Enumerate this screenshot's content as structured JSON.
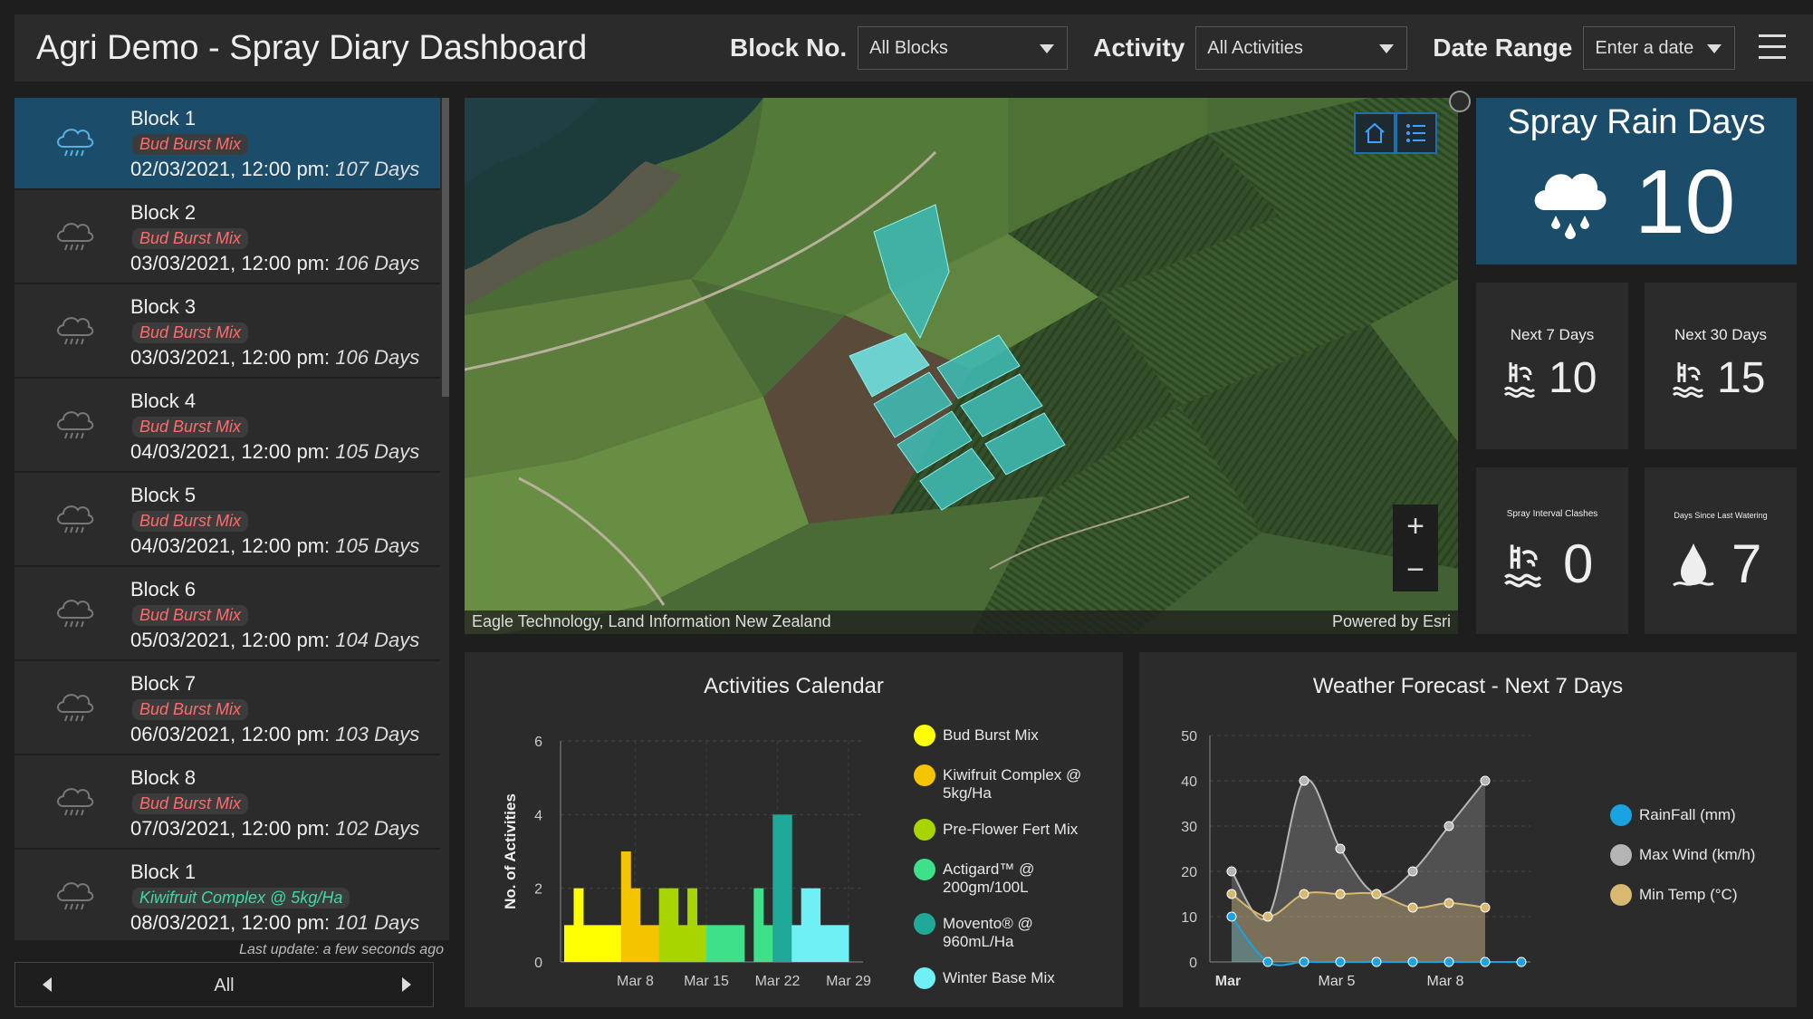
{
  "header": {
    "title": "Agri Demo - Spray Diary Dashboard",
    "block_label": "Block No.",
    "block_value": "All Blocks",
    "activity_label": "Activity",
    "activity_value": "All Activities",
    "date_label": "Date Range",
    "date_value": "Enter a date"
  },
  "list": {
    "items": [
      {
        "title": "Block 1",
        "tag": "Bud Burst Mix",
        "date": "02/03/2021, 12:00 pm:",
        "days": "107 Days"
      },
      {
        "title": "Block 2",
        "tag": "Bud Burst Mix",
        "date": "03/03/2021, 12:00 pm:",
        "days": "106 Days"
      },
      {
        "title": "Block 3",
        "tag": "Bud Burst Mix",
        "date": "03/03/2021, 12:00 pm:",
        "days": "106 Days"
      },
      {
        "title": "Block 4",
        "tag": "Bud Burst Mix",
        "date": "04/03/2021, 12:00 pm:",
        "days": "105 Days"
      },
      {
        "title": "Block 5",
        "tag": "Bud Burst Mix",
        "date": "04/03/2021, 12:00 pm:",
        "days": "105 Days"
      },
      {
        "title": "Block 6",
        "tag": "Bud Burst Mix",
        "date": "05/03/2021, 12:00 pm:",
        "days": "104 Days"
      },
      {
        "title": "Block 7",
        "tag": "Bud Burst Mix",
        "date": "06/03/2021, 12:00 pm:",
        "days": "103 Days"
      },
      {
        "title": "Block 8",
        "tag": "Bud Burst Mix",
        "date": "07/03/2021, 12:00 pm:",
        "days": "102 Days"
      },
      {
        "title": "Block 1",
        "tag": "Kiwifruit Complex @ 5kg/Ha",
        "date": "08/03/2021, 12:00 pm:",
        "days": "101 Days"
      }
    ],
    "last_update": "Last update: a few seconds ago",
    "pager_label": "All"
  },
  "map": {
    "attribution_left": "Eagle Technology, Land Information New Zealand",
    "attribution_right": "Powered by Esri",
    "zoom_in": "+",
    "zoom_out": "−"
  },
  "stats": {
    "spray_rain_days_title": "Spray Rain Days",
    "spray_rain_days_value": "10",
    "next7_title": "Next 7 Days",
    "next7_value": "10",
    "next30_title": "Next 30 Days",
    "next30_value": "15",
    "clashes_title": "Spray Interval Clashes",
    "clashes_value": "0",
    "watering_title": "Days Since Last Watering",
    "watering_value": "7"
  },
  "activities_chart": {
    "title": "Activities Calendar",
    "legend": [
      {
        "name": "Bud Burst Mix",
        "color": "#ffff00"
      },
      {
        "name": "Kiwifruit Complex @ 5kg/Ha",
        "color": "#f5c400"
      },
      {
        "name": "Pre-Flower Fert Mix",
        "color": "#a8d400"
      },
      {
        "name": "Actigard™ @ 200gm/100L",
        "color": "#3ee08a"
      },
      {
        "name": "Movento® @ 960mL/Ha",
        "color": "#20a898"
      },
      {
        "name": "Winter Base Mix",
        "color": "#6ff0f4"
      }
    ]
  },
  "weather_chart": {
    "title": "Weather Forecast - Next 7 Days",
    "legend": [
      {
        "name": "RainFall (mm)",
        "color": "#1aa3e0"
      },
      {
        "name": "Max Wind (km/h)",
        "color": "#b5b5b5"
      },
      {
        "name": "Min Temp (°C)",
        "color": "#d9b870"
      }
    ]
  },
  "chart_data": [
    {
      "type": "bar",
      "title": "Activities Calendar",
      "ylabel": "No. of Activities",
      "xlabel": "",
      "ylim": [
        0,
        6
      ],
      "yticks": [
        0,
        2,
        4,
        6
      ],
      "x_tick_labels": [
        "Mar 8",
        "Mar 15",
        "Mar 22",
        "Mar 29"
      ],
      "bars": [
        {
          "day": 1,
          "value": 1,
          "series": "Bud Burst Mix"
        },
        {
          "day": 2,
          "value": 2,
          "series": "Bud Burst Mix"
        },
        {
          "day": 3,
          "value": 1,
          "series": "Bud Burst Mix"
        },
        {
          "day": 4,
          "value": 1,
          "series": "Bud Burst Mix"
        },
        {
          "day": 5,
          "value": 1,
          "series": "Bud Burst Mix"
        },
        {
          "day": 6,
          "value": 1,
          "series": "Bud Burst Mix"
        },
        {
          "day": 7,
          "value": 3,
          "series": "Kiwifruit Complex @ 5kg/Ha"
        },
        {
          "day": 8,
          "value": 2,
          "series": "Kiwifruit Complex @ 5kg/Ha"
        },
        {
          "day": 9,
          "value": 1,
          "series": "Kiwifruit Complex @ 5kg/Ha"
        },
        {
          "day": 10,
          "value": 1,
          "series": "Kiwifruit Complex @ 5kg/Ha"
        },
        {
          "day": 11,
          "value": 2,
          "series": "Pre-Flower Fert Mix"
        },
        {
          "day": 12,
          "value": 2,
          "series": "Pre-Flower Fert Mix"
        },
        {
          "day": 13,
          "value": 1,
          "series": "Pre-Flower Fert Mix"
        },
        {
          "day": 14,
          "value": 2,
          "series": "Pre-Flower Fert Mix"
        },
        {
          "day": 15,
          "value": 1,
          "series": "Pre-Flower Fert Mix"
        },
        {
          "day": 16,
          "value": 1,
          "series": "Actigard™ @ 200gm/100L"
        },
        {
          "day": 17,
          "value": 1,
          "series": "Actigard™ @ 200gm/100L"
        },
        {
          "day": 18,
          "value": 1,
          "series": "Actigard™ @ 200gm/100L"
        },
        {
          "day": 19,
          "value": 1,
          "series": "Actigard™ @ 200gm/100L"
        },
        {
          "day": 20,
          "value": 0,
          "series": "Actigard™ @ 200gm/100L"
        },
        {
          "day": 21,
          "value": 2,
          "series": "Actigard™ @ 200gm/100L"
        },
        {
          "day": 22,
          "value": 1,
          "series": "Actigard™ @ 200gm/100L"
        },
        {
          "day": 23,
          "value": 4,
          "series": "Movento® @ 960mL/Ha"
        },
        {
          "day": 24,
          "value": 4,
          "series": "Movento® @ 960mL/Ha"
        },
        {
          "day": 25,
          "value": 1,
          "series": "Winter Base Mix"
        },
        {
          "day": 26,
          "value": 2,
          "series": "Winter Base Mix"
        },
        {
          "day": 27,
          "value": 2,
          "series": "Winter Base Mix"
        },
        {
          "day": 28,
          "value": 1,
          "series": "Winter Base Mix"
        },
        {
          "day": 29,
          "value": 1,
          "series": "Winter Base Mix"
        },
        {
          "day": 30,
          "value": 1,
          "series": "Winter Base Mix"
        }
      ]
    },
    {
      "type": "line",
      "title": "Weather Forecast - Next 7 Days",
      "ylim": [
        0,
        50
      ],
      "yticks": [
        0,
        10,
        20,
        30,
        40,
        50
      ],
      "x_tick_labels": [
        "Mar",
        "Mar 5",
        "Mar 8"
      ],
      "x": [
        1,
        2,
        3,
        4,
        5,
        6,
        7,
        8,
        9
      ],
      "series": [
        {
          "name": "RainFall (mm)",
          "values": [
            10,
            0,
            0,
            0,
            0,
            0,
            0,
            0,
            0
          ]
        },
        {
          "name": "Max Wind (km/h)",
          "values": [
            20,
            10,
            40,
            25,
            15,
            20,
            30,
            40,
            null
          ]
        },
        {
          "name": "Min Temp (°C)",
          "values": [
            15,
            10,
            15,
            15,
            15,
            12,
            13,
            12,
            null
          ]
        }
      ]
    }
  ]
}
